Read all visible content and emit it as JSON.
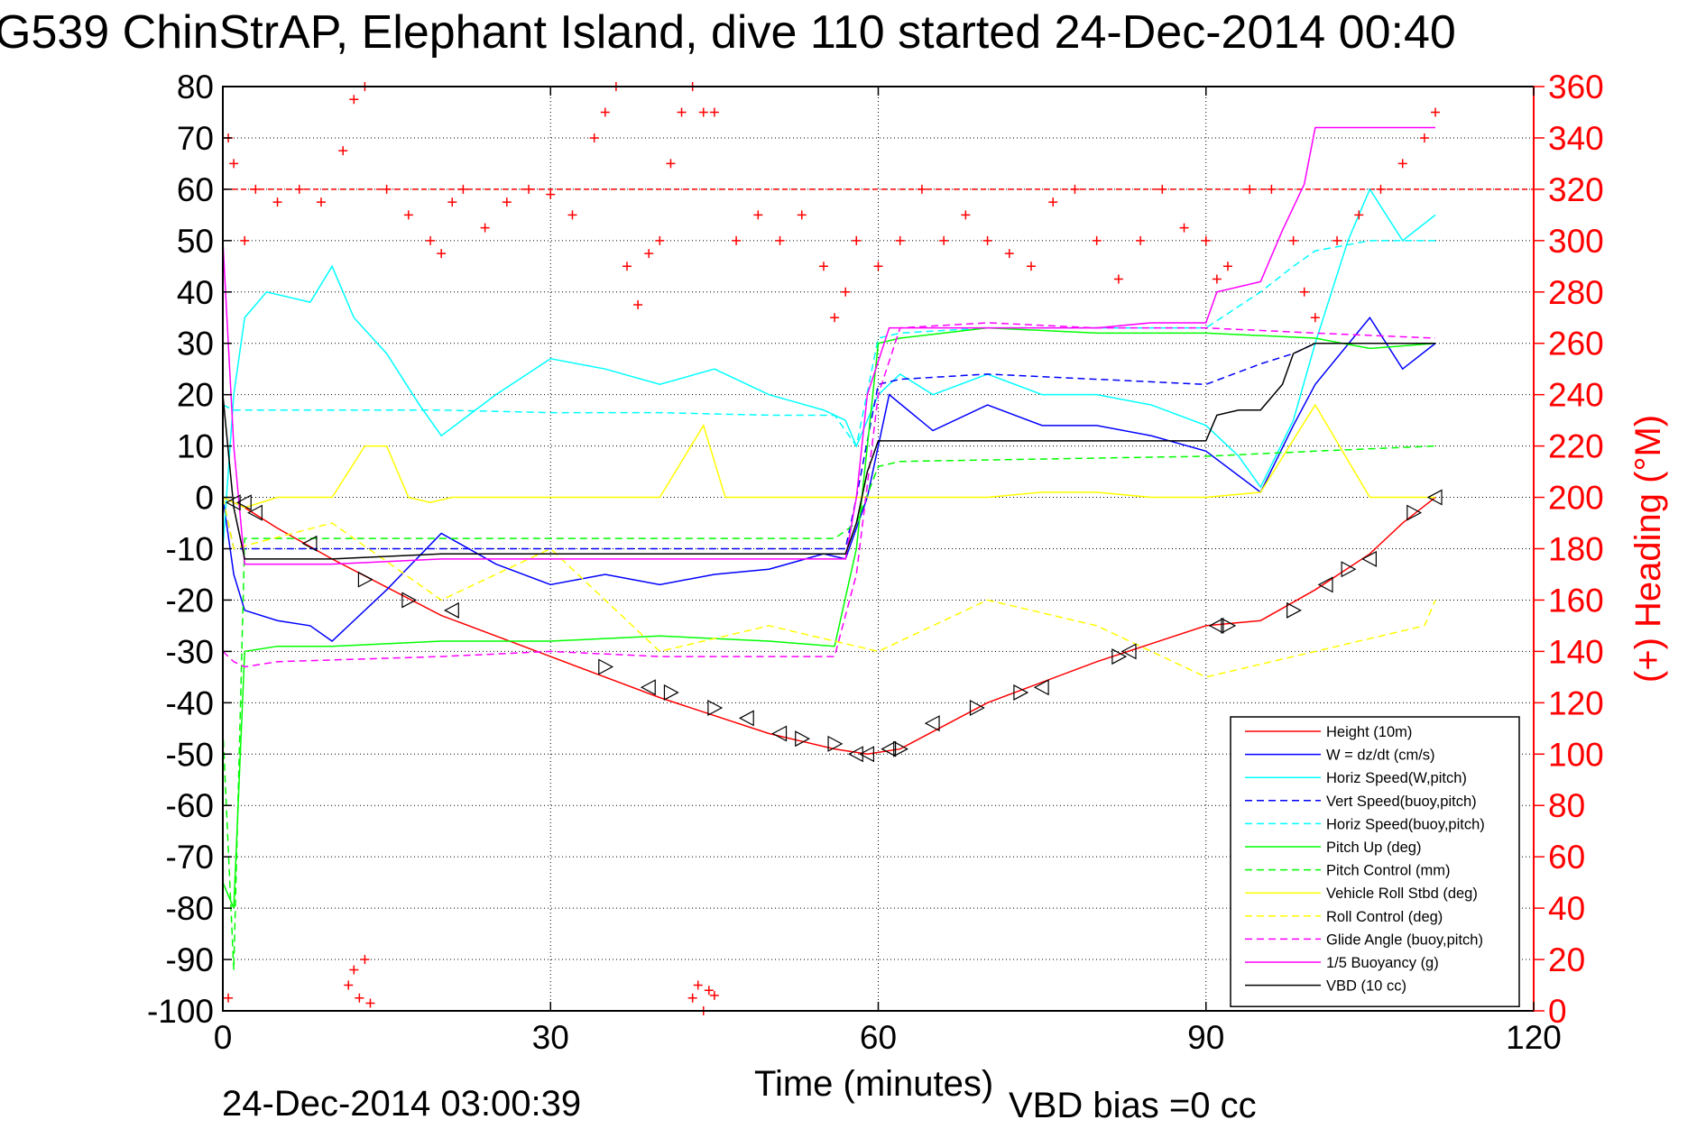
{
  "title": "G539 ChinStrAP, Elephant Island, dive 110 started 24-Dec-2014 00:40",
  "footer": {
    "timestamp": "24-Dec-2014 03:00:39",
    "vbd_bias": "VBD bias =0 cc"
  },
  "colors": {
    "height": "#ff0000",
    "w": "#0000ff",
    "cyan": "#00ffff",
    "green": "#00ff00",
    "yellow": "#ffff00",
    "magenta": "#ff00ff",
    "black": "#000000",
    "heading": "#ff0000"
  },
  "chart_data": {
    "type": "line",
    "xlabel": "Time (minutes)",
    "ylabel": "",
    "y2label": "(+) Heading (°M)",
    "xlim": [
      0,
      120
    ],
    "ylim": [
      -100,
      80
    ],
    "y2lim": [
      0,
      360
    ],
    "xticks": [
      0,
      30,
      60,
      90,
      120
    ],
    "yticks": [
      80,
      70,
      60,
      50,
      40,
      30,
      20,
      10,
      0,
      -10,
      -20,
      -30,
      -40,
      -50,
      -60,
      -70,
      -80,
      -90,
      -100
    ],
    "y2ticks": [
      360,
      340,
      320,
      300,
      280,
      260,
      240,
      220,
      200,
      180,
      160,
      140,
      120,
      100,
      80,
      60,
      40,
      20,
      0
    ],
    "grid": true,
    "legend_position": "bottom-right",
    "series": [
      {
        "name": "Height (10m)",
        "color": "#ff0000",
        "style": "solid",
        "x": [
          0,
          1,
          2,
          5,
          10,
          20,
          30,
          40,
          50,
          56,
          59,
          62,
          70,
          80,
          90,
          95,
          100,
          105,
          108,
          111
        ],
        "y": [
          0,
          -1,
          -2,
          -6,
          -12,
          -23,
          -31,
          -39,
          -46,
          -49,
          -50,
          -49,
          -40,
          -32,
          -25,
          -24,
          -18,
          -11,
          -5,
          0
        ]
      },
      {
        "name": "W = dz/dt (cm/s)",
        "color": "#0000ff",
        "style": "solid",
        "x": [
          0,
          1,
          2,
          5,
          8,
          10,
          15,
          20,
          25,
          30,
          35,
          40,
          45,
          50,
          55,
          57,
          59,
          61,
          65,
          70,
          75,
          80,
          85,
          90,
          95,
          98,
          100,
          105,
          108,
          111
        ],
        "y": [
          0,
          -15,
          -22,
          -24,
          -25,
          -28,
          -18,
          -7,
          -13,
          -17,
          -15,
          -17,
          -15,
          -14,
          -11,
          -12,
          0,
          20,
          13,
          18,
          14,
          14,
          12,
          9,
          1,
          14,
          22,
          35,
          25,
          30
        ]
      },
      {
        "name": "Horiz Speed(W,pitch)",
        "color": "#00ffff",
        "style": "solid",
        "x": [
          0,
          1,
          2,
          4,
          8,
          10,
          12,
          15,
          18,
          20,
          25,
          30,
          35,
          40,
          45,
          50,
          55,
          57,
          58,
          60,
          62,
          65,
          70,
          75,
          80,
          85,
          90,
          93,
          95,
          98,
          100,
          103,
          105,
          108,
          111
        ],
        "y": [
          -10,
          20,
          35,
          40,
          38,
          45,
          35,
          28,
          18,
          12,
          20,
          27,
          25,
          22,
          25,
          20,
          17,
          15,
          10,
          20,
          24,
          20,
          24,
          20,
          20,
          18,
          14,
          8,
          2,
          15,
          30,
          50,
          60,
          50,
          55
        ]
      },
      {
        "name": "Vert Speed(buoy,pitch)",
        "color": "#0000ff",
        "style": "dashed",
        "x": [
          0,
          1,
          5,
          10,
          20,
          30,
          40,
          50,
          57,
          58,
          60,
          62,
          70,
          80,
          90,
          95,
          98,
          100,
          105,
          111
        ],
        "y": [
          0,
          -10,
          -10,
          -10,
          -10,
          -10,
          -10,
          -10,
          -10,
          0,
          22,
          23,
          24,
          23,
          22,
          26,
          28,
          30,
          30,
          30
        ]
      },
      {
        "name": "Horiz Speed(buoy,pitch)",
        "color": "#00ffff",
        "style": "dashed",
        "x": [
          0,
          1,
          10,
          20,
          30,
          40,
          50,
          56,
          58,
          60,
          62,
          70,
          80,
          90,
          95,
          98,
          100,
          105,
          111
        ],
        "y": [
          18,
          17,
          17,
          17,
          16.5,
          16.5,
          16,
          16,
          10,
          31,
          32,
          33,
          33,
          33,
          40,
          45,
          48,
          50,
          50
        ]
      },
      {
        "name": "Pitch Up (deg)",
        "color": "#00ff00",
        "style": "solid",
        "x": [
          0,
          1,
          2,
          5,
          10,
          20,
          30,
          40,
          50,
          56,
          58,
          60,
          62,
          70,
          80,
          90,
          100,
          105,
          111
        ],
        "y": [
          -75,
          -80,
          -30,
          -29,
          -29,
          -28,
          -28,
          -27,
          -28,
          -29,
          -10,
          30,
          31,
          33,
          32,
          32,
          31,
          29,
          30
        ]
      },
      {
        "name": "Pitch Control (mm)",
        "color": "#00ff00",
        "style": "dashed",
        "x": [
          0,
          1,
          2,
          5,
          30,
          56,
          58,
          60,
          62,
          90,
          100,
          111
        ],
        "y": [
          -45,
          -92,
          -8,
          -8,
          -8,
          -8,
          -5,
          6,
          7,
          8,
          9,
          10
        ]
      },
      {
        "name": "Vehicle Roll Stbd (deg)",
        "color": "#ffff00",
        "style": "solid",
        "x": [
          0,
          2,
          5,
          10,
          13,
          15,
          17,
          19,
          21,
          25,
          30,
          35,
          40,
          44,
          46,
          50,
          55,
          57,
          60,
          65,
          70,
          75,
          80,
          85,
          90,
          95,
          100,
          105,
          111
        ],
        "y": [
          0,
          -2,
          0,
          0,
          10,
          10,
          0,
          -1,
          0,
          0,
          0,
          0,
          0,
          14,
          0,
          0,
          0,
          0,
          0,
          0,
          0,
          1,
          1,
          0,
          0,
          1,
          18,
          0,
          0
        ]
      },
      {
        "name": "Roll Control (deg)",
        "color": "#ffff00",
        "style": "dashed",
        "x": [
          0,
          1,
          10,
          20,
          30,
          40,
          50,
          60,
          70,
          80,
          90,
          100,
          110,
          111
        ],
        "y": [
          0,
          -10,
          -5,
          -20,
          -10,
          -30,
          -25,
          -30,
          -20,
          -25,
          -35,
          -30,
          -25,
          -20
        ]
      },
      {
        "name": "Glide Angle (buoy,pitch)",
        "color": "#ff00ff",
        "style": "dashed",
        "x": [
          0,
          1,
          2,
          5,
          20,
          30,
          40,
          50,
          56,
          58,
          60,
          62,
          70,
          80,
          90,
          100,
          111
        ],
        "y": [
          -30,
          -32,
          -33,
          -32,
          -31,
          -30,
          -31,
          -31,
          -31,
          -15,
          20,
          33,
          34,
          33,
          33,
          32,
          31
        ]
      },
      {
        "name": "1/5 Buoyancy (g)",
        "color": "#ff00ff",
        "style": "solid",
        "x": [
          0,
          1,
          2,
          10,
          20,
          30,
          40,
          50,
          57,
          58,
          59,
          61,
          70,
          80,
          85,
          90,
          91,
          95,
          97,
          99,
          100,
          105,
          111
        ],
        "y": [
          50,
          10,
          -13,
          -13,
          -12,
          -12,
          -12,
          -12,
          -12,
          0,
          20,
          33,
          33,
          33,
          34,
          34,
          40,
          42,
          52,
          61,
          72,
          72,
          72
        ]
      },
      {
        "name": "VBD (10 cc)",
        "color": "#000000",
        "style": "solid",
        "x": [
          0,
          1,
          2,
          10,
          20,
          30,
          40,
          50,
          57,
          58,
          59,
          60,
          61,
          70,
          80,
          90,
          91,
          93,
          95,
          97,
          98,
          100,
          105,
          111
        ],
        "y": [
          20,
          -2,
          -12,
          -12,
          -11,
          -11,
          -11,
          -11,
          -11,
          -5,
          5,
          11,
          11,
          11,
          11,
          11,
          16,
          17,
          17,
          22,
          28,
          30,
          30,
          30
        ]
      }
    ],
    "heading": {
      "name": "(+) Heading",
      "color": "#ff0000",
      "marker": "+",
      "x": [
        0.5,
        1,
        2,
        3,
        5,
        7,
        9,
        11,
        12,
        13,
        15,
        17,
        19,
        20,
        21,
        22,
        24,
        26,
        28,
        30,
        32,
        34,
        35,
        36,
        37,
        38,
        39,
        40,
        41,
        42,
        43,
        44,
        45,
        47,
        49,
        51,
        53,
        55,
        56,
        57,
        58,
        60,
        62,
        64,
        66,
        68,
        70,
        72,
        74,
        76,
        78,
        80,
        82,
        84,
        86,
        88,
        90,
        91,
        92,
        94,
        96,
        98,
        99,
        100,
        102,
        104,
        106,
        108,
        110,
        111
      ],
      "y": [
        340,
        330,
        300,
        320,
        315,
        320,
        315,
        335,
        355,
        360,
        320,
        310,
        300,
        295,
        315,
        320,
        305,
        315,
        320,
        318,
        310,
        340,
        350,
        360,
        290,
        275,
        295,
        300,
        330,
        350,
        360,
        350,
        350,
        300,
        310,
        300,
        310,
        290,
        270,
        280,
        300,
        290,
        300,
        320,
        300,
        310,
        300,
        295,
        290,
        315,
        320,
        300,
        285,
        300,
        320,
        305,
        300,
        285,
        290,
        320,
        320,
        300,
        280,
        270,
        300,
        310,
        320,
        330,
        340,
        350
      ],
      "x_low": [
        11.5,
        12,
        12.5,
        13,
        13.5,
        43,
        43.5,
        44,
        44.5,
        45,
        0.5
      ],
      "y_low": [
        10,
        16,
        5,
        20,
        3,
        5,
        10,
        0,
        8,
        6,
        5
      ]
    },
    "height_markers": {
      "x": [
        1,
        2,
        3,
        8,
        13,
        17,
        21,
        35,
        39,
        41,
        45,
        48,
        51,
        53,
        56,
        58,
        59,
        61,
        62,
        65,
        69,
        73,
        75,
        82,
        83,
        91,
        92,
        98,
        101,
        103,
        105,
        109,
        111
      ],
      "y": [
        -1,
        -1,
        -3,
        -9,
        -16,
        -20,
        -22,
        -33,
        -37,
        -38,
        -41,
        -43,
        -46,
        -47,
        -48,
        -50,
        -50,
        -49,
        -49,
        -44,
        -41,
        -38,
        -37,
        -31,
        -30,
        -25,
        -25,
        -22,
        -17,
        -14,
        -12,
        -3,
        0
      ],
      "dir": [
        "L",
        "L",
        "L",
        "L",
        "R",
        "R",
        "L",
        "R",
        "L",
        "R",
        "R",
        "L",
        "L",
        "R",
        "R",
        "L",
        "L",
        "L",
        "R",
        "L",
        "R",
        "R",
        "L",
        "R",
        "L",
        "L",
        "R",
        "R",
        "L",
        "R",
        "L",
        "R",
        "L"
      ]
    },
    "reference_line_heading": 320
  }
}
